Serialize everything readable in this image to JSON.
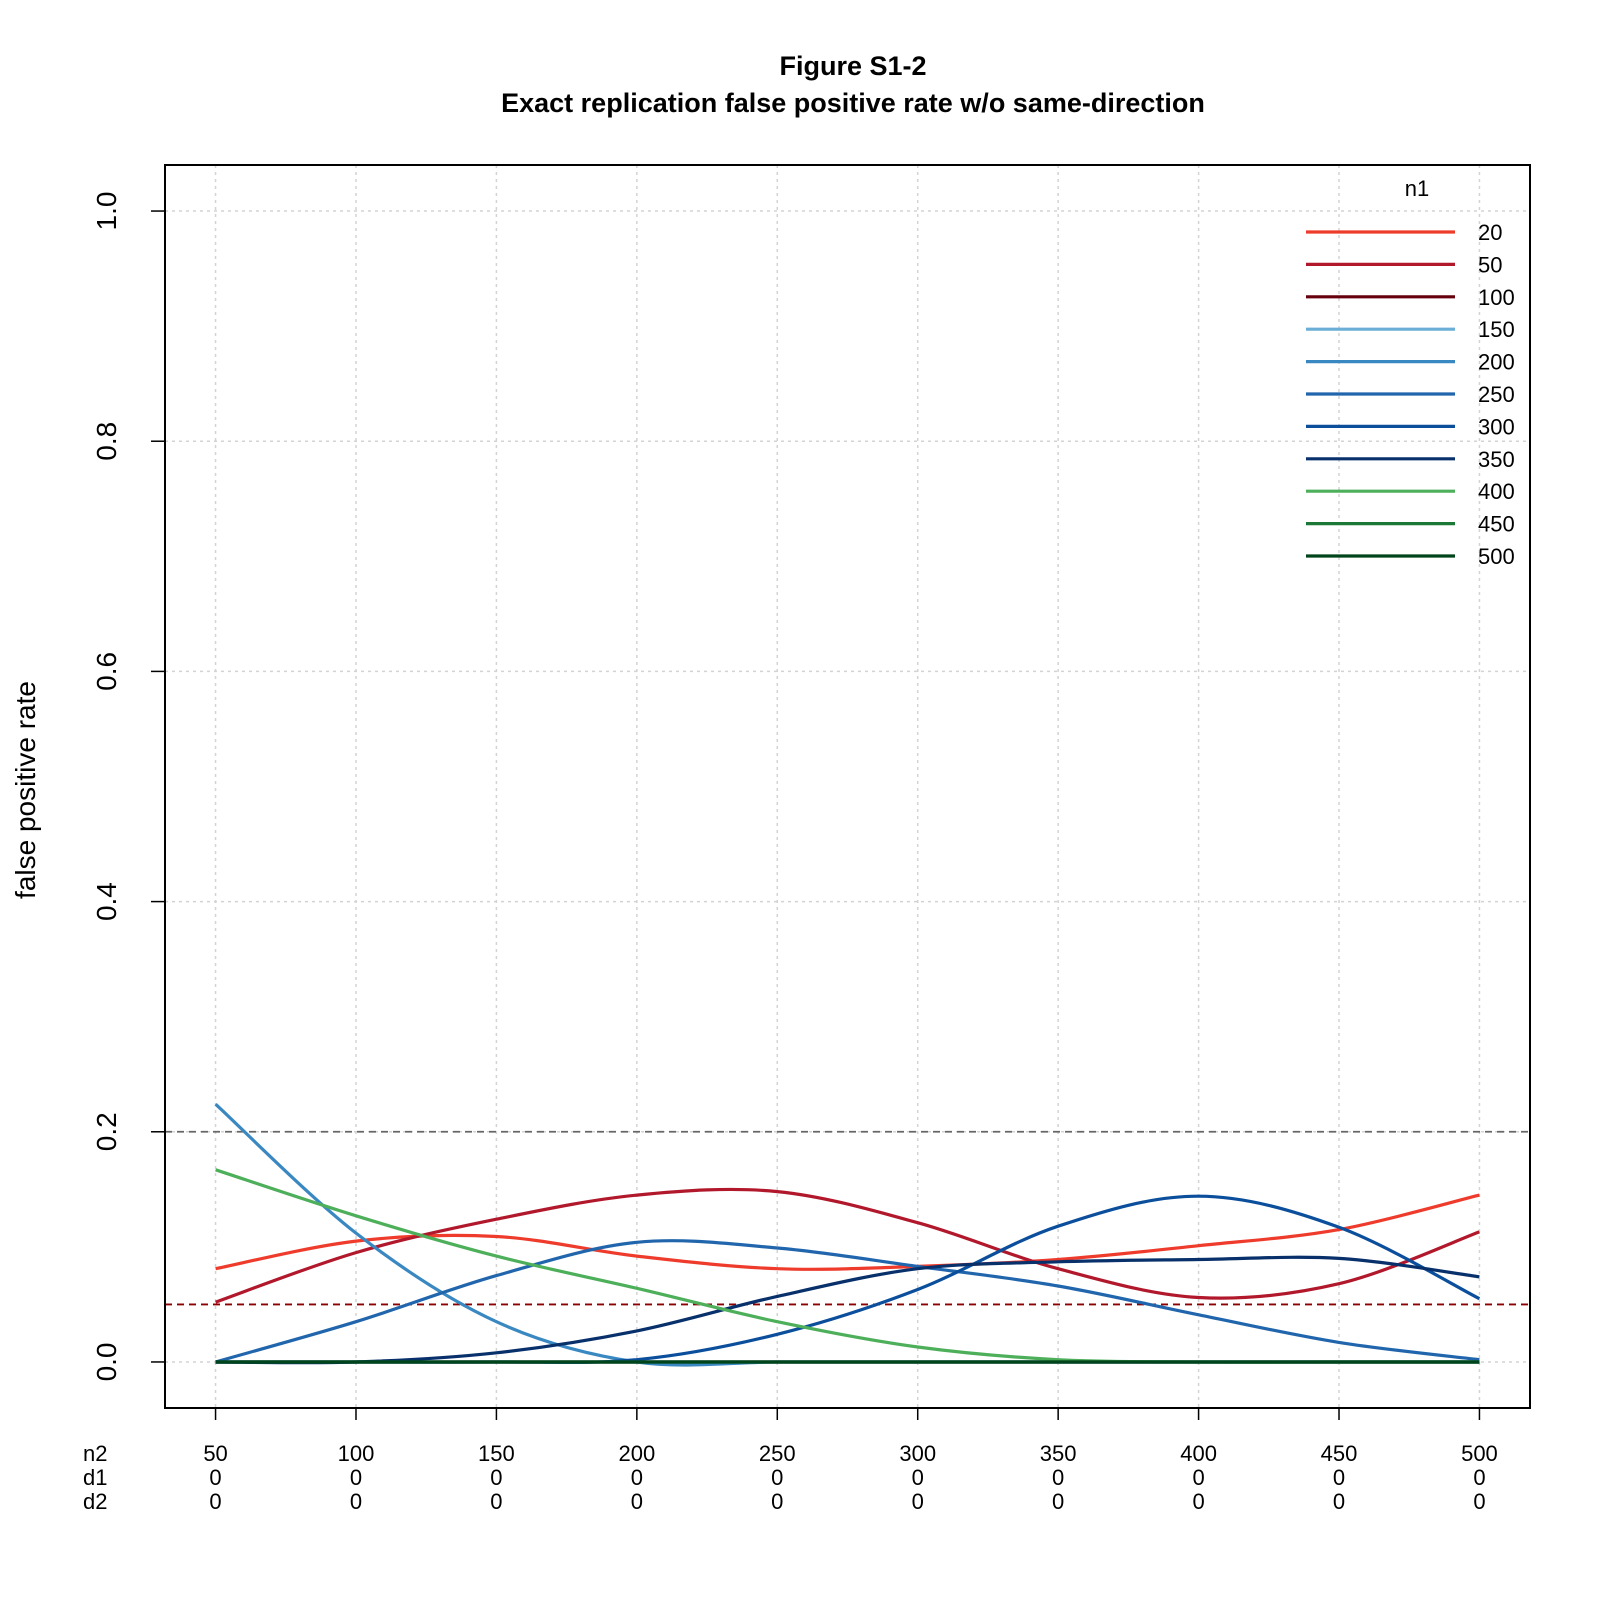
{
  "chart_data": {
    "type": "line",
    "title": "Figure S1-2",
    "subtitle": "Exact replication false positive rate w/o same-direction",
    "ylabel": "false positive rate",
    "ylim": [
      -0.04,
      1.04
    ],
    "yticks": [
      0.0,
      0.2,
      0.4,
      0.6,
      0.8,
      1.0
    ],
    "ytick_labels": [
      "0.0",
      "0.2",
      "0.4",
      "0.6",
      "0.8",
      "1.0"
    ],
    "xlim": [
      32,
      518
    ],
    "x": [
      50,
      100,
      150,
      200,
      250,
      300,
      350,
      400,
      450,
      500
    ],
    "xaxis_rows": [
      {
        "label": "n2",
        "values": [
          "50",
          "100",
          "150",
          "200",
          "250",
          "300",
          "350",
          "400",
          "450",
          "500"
        ]
      },
      {
        "label": "d1",
        "values": [
          "0",
          "0",
          "0",
          "0",
          "0",
          "0",
          "0",
          "0",
          "0",
          "0"
        ]
      },
      {
        "label": "d2",
        "values": [
          "0",
          "0",
          "0",
          "0",
          "0",
          "0",
          "0",
          "0",
          "0",
          "0"
        ]
      }
    ],
    "grid": true,
    "reference_lines": [
      {
        "y": 0.2,
        "color": "#666666",
        "style": "dashed"
      },
      {
        "y": 0.05,
        "color": "#8b0000",
        "style": "dashed"
      }
    ],
    "legend": {
      "title": "n1",
      "position": "top-right"
    },
    "series": [
      {
        "name": "20",
        "color": "#ef3b2c",
        "values": [
          0.081,
          0.105,
          0.109,
          0.092,
          0.081,
          0.083,
          0.089,
          0.101,
          0.115,
          0.145
        ]
      },
      {
        "name": "50",
        "color": "#b2182b",
        "values": [
          0.052,
          0.095,
          0.124,
          0.145,
          0.148,
          0.121,
          0.081,
          0.056,
          0.068,
          0.113
        ]
      },
      {
        "name": "100",
        "color": "#67000d",
        "values": [
          0.0,
          0.0,
          0.0,
          0.0,
          0.0,
          0.0,
          0.0,
          0.0,
          0.0,
          0.0
        ]
      },
      {
        "name": "150",
        "color": "#6baed6",
        "values": [
          0.0,
          0.0,
          0.0,
          0.0,
          0.0,
          0.0,
          0.0,
          0.0,
          0.0,
          0.0
        ]
      },
      {
        "name": "200",
        "color": "#3a88c1",
        "values": [
          0.224,
          0.112,
          0.035,
          0.0,
          0.0,
          0.0,
          0.0,
          0.0,
          0.0,
          0.0
        ]
      },
      {
        "name": "250",
        "color": "#2166ac",
        "values": [
          0.0,
          0.035,
          0.075,
          0.104,
          0.099,
          0.083,
          0.066,
          0.041,
          0.017,
          0.002
        ]
      },
      {
        "name": "300",
        "color": "#0b4f9c",
        "values": [
          0.0,
          0.0,
          0.0,
          0.002,
          0.024,
          0.063,
          0.118,
          0.144,
          0.117,
          0.055
        ]
      },
      {
        "name": "350",
        "color": "#08306b",
        "values": [
          0.0,
          0.0,
          0.008,
          0.027,
          0.057,
          0.081,
          0.087,
          0.089,
          0.09,
          0.074
        ]
      },
      {
        "name": "400",
        "color": "#4daf5a",
        "values": [
          0.167,
          0.127,
          0.092,
          0.064,
          0.035,
          0.013,
          0.002,
          0.0,
          0.0,
          0.0
        ]
      },
      {
        "name": "450",
        "color": "#1b7837",
        "values": [
          0.0,
          0.0,
          0.0,
          0.0,
          0.0,
          0.0,
          0.0,
          0.0,
          0.0,
          0.0
        ]
      },
      {
        "name": "500",
        "color": "#00441b",
        "values": [
          0.0,
          0.0,
          0.0,
          0.0,
          0.0,
          0.0,
          0.0,
          0.0,
          0.0,
          0.0
        ]
      }
    ]
  }
}
